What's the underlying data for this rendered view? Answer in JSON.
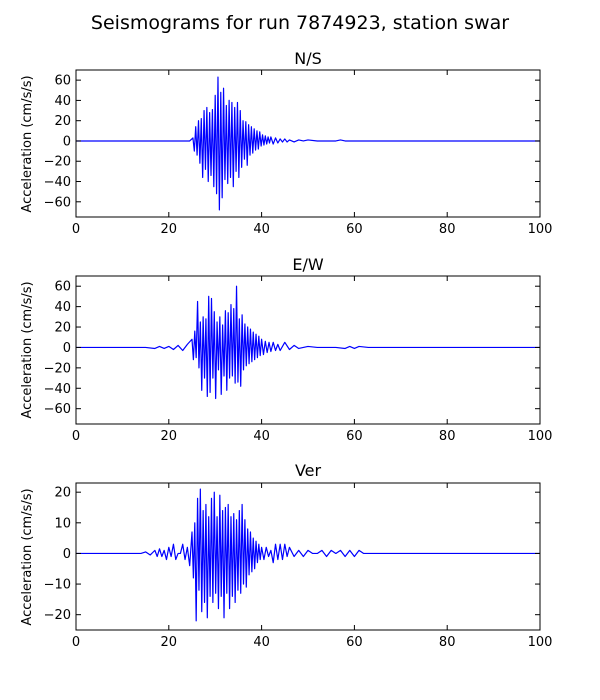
{
  "title": "Seismograms for run 7874923, station swar",
  "chart_data": [
    {
      "type": "line",
      "title": "N/S",
      "xlabel": "",
      "ylabel": "Acceleration (cm/s/s)",
      "xlim": [
        0,
        100
      ],
      "ylim": [
        -75,
        70
      ],
      "xticks": [
        0,
        20,
        40,
        60,
        80,
        100
      ],
      "yticks": [
        -60,
        -40,
        -20,
        0,
        20,
        40,
        60
      ],
      "color": "#0000ff",
      "grid": false,
      "series": [
        {
          "x": [
            0,
            15,
            20,
            24.5,
            25.2,
            25.5,
            25.8,
            26.1,
            26.4,
            26.7,
            27.0,
            27.3,
            27.6,
            27.9,
            28.2,
            28.5,
            28.8,
            29.1,
            29.4,
            29.7,
            30.0,
            30.3,
            30.6,
            30.9,
            31.2,
            31.5,
            31.8,
            32.1,
            32.4,
            32.7,
            33.0,
            33.3,
            33.6,
            33.9,
            34.2,
            34.5,
            34.8,
            35.1,
            35.4,
            35.7,
            36.0,
            36.3,
            36.6,
            36.9,
            37.2,
            37.5,
            37.8,
            38.1,
            38.4,
            38.7,
            39.0,
            39.3,
            39.6,
            39.9,
            40.2,
            40.5,
            40.8,
            41.1,
            41.4,
            41.7,
            42.0,
            42.5,
            43.0,
            43.5,
            44.0,
            44.5,
            45.0,
            45.5,
            46.0,
            47.0,
            48.0,
            49.0,
            50.0,
            52.0,
            54.0,
            56.0,
            57.0,
            58.0,
            60.0,
            65.0,
            100
          ],
          "y": [
            0,
            0,
            0,
            0,
            3,
            -10,
            14,
            -14,
            20,
            -22,
            22,
            -36,
            30,
            -28,
            33,
            -40,
            28,
            -34,
            31,
            -45,
            45,
            -52,
            63,
            -68,
            48,
            -56,
            52,
            -38,
            35,
            -42,
            40,
            -36,
            38,
            -45,
            33,
            -30,
            38,
            -36,
            30,
            -26,
            20,
            -18,
            19,
            -24,
            16,
            -14,
            14,
            -12,
            12,
            -9,
            10,
            -8,
            9,
            -5,
            6,
            -4,
            5,
            -3,
            4,
            -2,
            4,
            -3,
            3,
            -2,
            2,
            -1,
            2,
            -1,
            1,
            -1,
            1,
            0,
            1,
            0,
            0,
            0,
            1,
            0,
            0,
            0,
            0
          ]
        }
      ]
    },
    {
      "type": "line",
      "title": "E/W",
      "xlabel": "",
      "ylabel": "Acceleration (cm/s/s)",
      "xlim": [
        0,
        100
      ],
      "ylim": [
        -75,
        70
      ],
      "xticks": [
        0,
        20,
        40,
        60,
        80,
        100
      ],
      "yticks": [
        -60,
        -40,
        -20,
        0,
        20,
        40,
        60
      ],
      "color": "#0000ff",
      "grid": false,
      "series": [
        {
          "x": [
            0,
            15,
            17,
            18,
            19,
            20,
            21,
            22,
            23,
            24,
            25.0,
            25.3,
            25.6,
            25.9,
            26.2,
            26.5,
            26.8,
            27.1,
            27.4,
            27.7,
            28.0,
            28.3,
            28.6,
            28.9,
            29.2,
            29.5,
            29.8,
            30.1,
            30.4,
            30.7,
            31.0,
            31.3,
            31.6,
            31.9,
            32.2,
            32.5,
            32.8,
            33.1,
            33.4,
            33.7,
            34.0,
            34.3,
            34.6,
            34.9,
            35.2,
            35.5,
            35.8,
            36.1,
            36.4,
            36.7,
            37.0,
            37.3,
            37.6,
            37.9,
            38.2,
            38.5,
            38.8,
            39.1,
            39.4,
            39.7,
            40.0,
            40.4,
            40.8,
            41.2,
            41.6,
            42.0,
            42.5,
            43.0,
            43.5,
            44.0,
            45.0,
            46.0,
            47.0,
            48.0,
            50.0,
            52.0,
            56.0,
            58.0,
            59.0,
            60.0,
            61.0,
            63.0,
            65.0,
            100
          ],
          "y": [
            0,
            0,
            -1,
            1,
            -1,
            1,
            -2,
            2,
            -3,
            3,
            8,
            -12,
            16,
            -10,
            45,
            -20,
            25,
            -42,
            30,
            -30,
            28,
            -48,
            50,
            -44,
            48,
            -30,
            35,
            -50,
            25,
            -22,
            30,
            -46,
            22,
            -28,
            36,
            -42,
            34,
            -30,
            42,
            -28,
            38,
            -35,
            60,
            -34,
            28,
            -38,
            32,
            -22,
            23,
            -18,
            20,
            -16,
            18,
            -14,
            15,
            -12,
            13,
            -10,
            11,
            -8,
            8,
            -7,
            6,
            -5,
            5,
            -4,
            5,
            -3,
            3,
            -3,
            5,
            -2,
            2,
            -1,
            1,
            0,
            0,
            -1,
            1,
            -1,
            1,
            0,
            0,
            0
          ]
        }
      ]
    },
    {
      "type": "line",
      "title": "Ver",
      "xlabel": "",
      "ylabel": "Acceleration (cm/s/s)",
      "xlim": [
        0,
        100
      ],
      "ylim": [
        -25,
        23
      ],
      "xticks": [
        0,
        20,
        40,
        60,
        80,
        100
      ],
      "yticks": [
        -20,
        -10,
        0,
        10,
        20
      ],
      "color": "#0000ff",
      "grid": false,
      "series": [
        {
          "x": [
            0,
            14,
            15,
            16,
            17,
            17.5,
            18,
            18.5,
            19,
            19.5,
            20,
            20.5,
            21,
            21.5,
            22,
            22.5,
            23,
            23.5,
            24,
            24.5,
            25.0,
            25.3,
            25.6,
            25.9,
            26.2,
            26.5,
            26.8,
            27.1,
            27.4,
            27.7,
            28.0,
            28.3,
            28.6,
            28.9,
            29.2,
            29.5,
            29.8,
            30.1,
            30.4,
            30.7,
            31.0,
            31.3,
            31.6,
            31.9,
            32.2,
            32.5,
            32.8,
            33.1,
            33.4,
            33.7,
            34.0,
            34.3,
            34.6,
            34.9,
            35.2,
            35.5,
            35.8,
            36.1,
            36.4,
            36.7,
            37.0,
            37.3,
            37.6,
            37.9,
            38.2,
            38.5,
            38.8,
            39.1,
            39.4,
            39.7,
            40.0,
            40.5,
            41.0,
            41.5,
            42.0,
            42.5,
            43.0,
            43.5,
            44.0,
            44.5,
            45.0,
            45.5,
            46.0,
            47.0,
            48.0,
            49.0,
            50.0,
            51.0,
            52.0,
            53.0,
            54.0,
            55.0,
            56.0,
            57.0,
            58.0,
            59.0,
            60.0,
            61.0,
            62.0,
            63.0,
            64.0,
            65.0,
            100
          ],
          "y": [
            0,
            0,
            0.5,
            -0.5,
            1,
            -1,
            1.5,
            -1,
            1,
            -2,
            2,
            -1,
            3,
            -2,
            0,
            0,
            3,
            -2,
            2,
            -4,
            7,
            -8,
            10,
            -22,
            18,
            -12,
            21,
            -19,
            14,
            -16,
            16,
            -21,
            12,
            -14,
            18,
            -16,
            20,
            -13,
            12,
            -18,
            19,
            -14,
            14,
            -21,
            15,
            -13,
            16,
            -18,
            12,
            -14,
            13,
            -16,
            11,
            -12,
            14,
            -13,
            16,
            -10,
            11,
            -11,
            8,
            -7,
            7,
            -6,
            5,
            -5,
            4,
            -3,
            3,
            -2,
            2,
            -2,
            2,
            -1,
            1,
            -3,
            3,
            -2,
            3,
            -2,
            3,
            -1,
            2,
            -1,
            1,
            -1,
            1,
            0,
            0,
            1,
            -1,
            1,
            0,
            1,
            -1,
            1,
            -1,
            1,
            0,
            0,
            0,
            0,
            0
          ]
        }
      ]
    }
  ]
}
